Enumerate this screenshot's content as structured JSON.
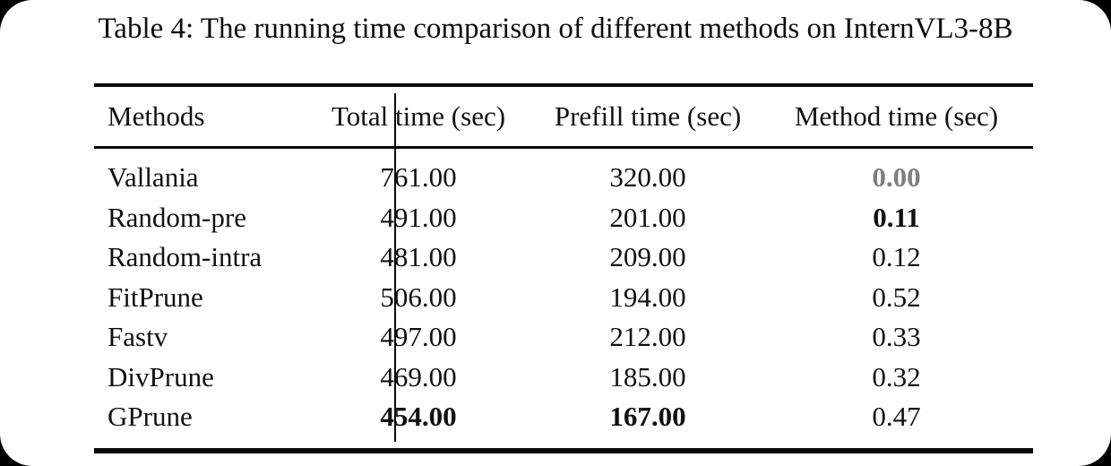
{
  "caption": "Table 4: The running time comparison of different methods on InternVL3-8B",
  "table": {
    "columns": {
      "methods": "Methods",
      "total": "Total time (sec)",
      "prefill": "Prefill time (sec)",
      "method_time": "Method time (sec)"
    },
    "rows": [
      {
        "method": "Vallania",
        "total": "761.00",
        "prefill": "320.00",
        "method_time": "0.00"
      },
      {
        "method": "Random-pre",
        "total": "491.00",
        "prefill": "201.00",
        "method_time": "0.11"
      },
      {
        "method": "Random-intra",
        "total": "481.00",
        "prefill": "209.00",
        "method_time": "0.12"
      },
      {
        "method": "FitPrune",
        "total": "506.00",
        "prefill": "194.00",
        "method_time": "0.52"
      },
      {
        "method": "Fastv",
        "total": "497.00",
        "prefill": "212.00",
        "method_time": "0.33"
      },
      {
        "method": "DivPrune",
        "total": "469.00",
        "prefill": "185.00",
        "method_time": "0.32"
      },
      {
        "method": "GPrune",
        "total": "454.00",
        "prefill": "167.00",
        "method_time": "0.47"
      }
    ]
  },
  "colors": {
    "text": "#111111",
    "rule": "#0a0a0a",
    "muted_value": "#7e7e7e",
    "page_background": "#ffffff",
    "outside_background": "#000000"
  }
}
